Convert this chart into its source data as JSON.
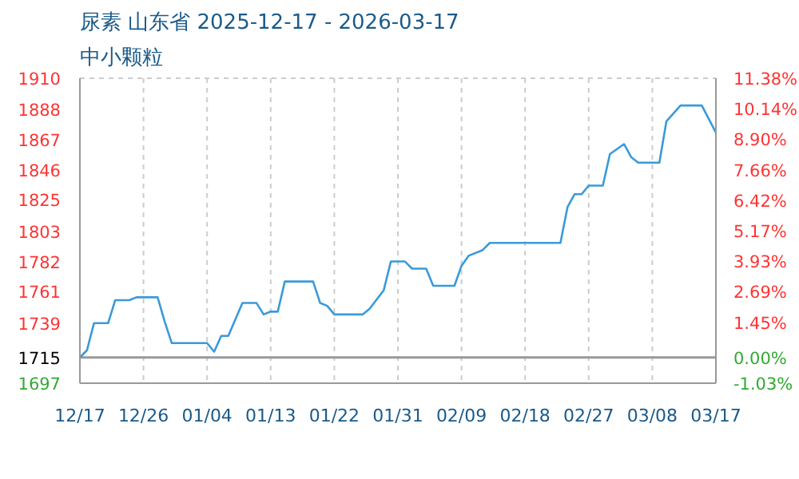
{
  "chart_data": {
    "type": "line",
    "title": "尿素 山东省 2025-12-17 - 2026-03-17",
    "subtitle": "中小颗粒",
    "x": [
      "2025-12-17",
      "2025-12-18",
      "2025-12-19",
      "2025-12-21",
      "2025-12-22",
      "2025-12-24",
      "2025-12-25",
      "2025-12-28",
      "2025-12-29",
      "2025-12-30",
      "2026-01-04",
      "2026-01-05",
      "2026-01-06",
      "2026-01-07",
      "2026-01-09",
      "2026-01-11",
      "2026-01-12",
      "2026-01-13",
      "2026-01-14",
      "2026-01-15",
      "2026-01-19",
      "2026-01-20",
      "2026-01-21",
      "2026-01-22",
      "2026-01-26",
      "2026-01-27",
      "2026-01-29",
      "2026-01-30",
      "2026-02-01",
      "2026-02-02",
      "2026-02-04",
      "2026-02-05",
      "2026-02-08",
      "2026-02-09",
      "2026-02-10",
      "2026-02-12",
      "2026-02-13",
      "2026-02-23",
      "2026-02-24",
      "2026-02-25",
      "2026-02-26",
      "2026-02-27",
      "2026-03-01",
      "2026-03-02",
      "2026-03-04",
      "2026-03-05",
      "2026-03-06",
      "2026-03-09",
      "2026-03-10",
      "2026-03-12",
      "2026-03-15",
      "2026-03-17"
    ],
    "series": [
      {
        "color": "#3a9ad9",
        "values": [
          1715,
          1720,
          1739,
          1739,
          1755,
          1755,
          1757,
          1757,
          1740,
          1725,
          1725,
          1719,
          1730,
          1730,
          1753,
          1753,
          1745,
          1747,
          1747,
          1768,
          1768,
          1753,
          1751,
          1745,
          1745,
          1749,
          1762,
          1782,
          1782,
          1777,
          1777,
          1765,
          1765,
          1779,
          1786,
          1790,
          1795,
          1795,
          1820,
          1829,
          1829,
          1835,
          1835,
          1857,
          1864,
          1855,
          1851,
          1851,
          1880,
          1891,
          1891,
          1872
        ]
      }
    ],
    "xlim": [
      "2025-12-17",
      "2026-03-17"
    ],
    "xticks": [
      {
        "value": "2025-12-17",
        "label": "12/17"
      },
      {
        "value": "2025-12-26",
        "label": "12/26"
      },
      {
        "value": "2026-01-04",
        "label": "01/04"
      },
      {
        "value": "2026-01-13",
        "label": "01/13"
      },
      {
        "value": "2026-01-22",
        "label": "01/22"
      },
      {
        "value": "2026-01-31",
        "label": "01/31"
      },
      {
        "value": "2026-02-09",
        "label": "02/09"
      },
      {
        "value": "2026-02-18",
        "label": "02/18"
      },
      {
        "value": "2026-02-27",
        "label": "02/27"
      },
      {
        "value": "2026-03-08",
        "label": "03/08"
      },
      {
        "value": "2026-03-17",
        "label": "03/17"
      }
    ],
    "ylim": [
      1697,
      1910
    ],
    "yticks": [
      1697,
      1715,
      1739,
      1761,
      1782,
      1803,
      1825,
      1846,
      1867,
      1888,
      1910
    ],
    "y2lim": [
      -1.03,
      11.38
    ],
    "y2ticks": [
      {
        "value": -1.03,
        "label": "-1.03%"
      },
      {
        "value": 0,
        "label": "0.00%"
      },
      {
        "value": 1.45,
        "label": "1.45%"
      },
      {
        "value": 2.69,
        "label": "2.69%"
      },
      {
        "value": 3.93,
        "label": "3.93%"
      },
      {
        "value": 5.17,
        "label": "5.17%"
      },
      {
        "value": 6.42,
        "label": "6.42%"
      },
      {
        "value": 7.66,
        "label": "7.66%"
      },
      {
        "value": 8.9,
        "label": "8.90%"
      },
      {
        "value": 10.14,
        "label": "10.14%"
      },
      {
        "value": 11.38,
        "label": "11.38%"
      }
    ],
    "ref_lines": [
      {
        "axis": "y",
        "value": 1715,
        "color": "#999999"
      }
    ],
    "grid": true,
    "marker": "none",
    "line_style": "solid"
  }
}
